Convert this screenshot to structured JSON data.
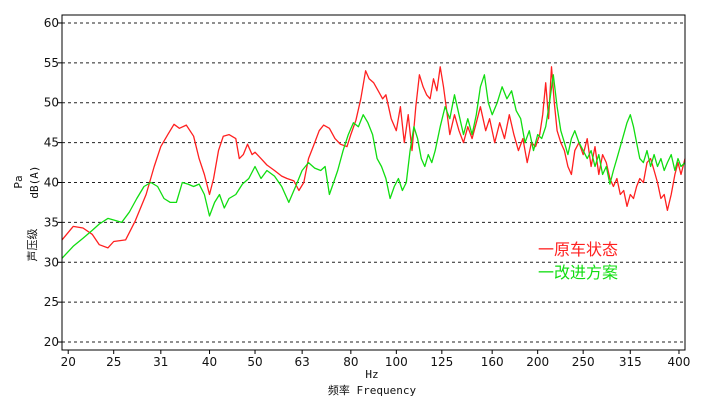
{
  "chart_data": {
    "type": "line",
    "title": "",
    "xlabel_unit": "Hz",
    "xlabel": "频率 Frequency",
    "ylabel_units": [
      "Pa",
      "dB(A)"
    ],
    "ylabel": "声压级",
    "x_scale": "log",
    "xlim": [
      19.4,
      412
    ],
    "ylim": [
      19,
      61
    ],
    "y_ticks": [
      20,
      25,
      30,
      35,
      40,
      45,
      50,
      55,
      60
    ],
    "x_ticks": [
      "20",
      "25",
      "31",
      "40",
      "50",
      "63",
      "80",
      "100",
      "125",
      "160",
      "200",
      "250",
      "315",
      "400"
    ],
    "x_tick_values": [
      20,
      25,
      31.5,
      40,
      50,
      63,
      80,
      100,
      125,
      160,
      200,
      250,
      315,
      400
    ],
    "grid": "horizontal dashed",
    "legend_position": "right",
    "series": [
      {
        "name": "一原车状态",
        "color": "#ff2020",
        "points": [
          [
            19.4,
            32.8
          ],
          [
            20.5,
            34.5
          ],
          [
            21.5,
            34.3
          ],
          [
            22.5,
            33.5
          ],
          [
            23.3,
            32.2
          ],
          [
            24.3,
            31.8
          ],
          [
            25.0,
            32.6
          ],
          [
            26.5,
            32.8
          ],
          [
            27.8,
            35.2
          ],
          [
            29.3,
            38.5
          ],
          [
            30.5,
            42.0
          ],
          [
            31.5,
            44.5
          ],
          [
            32.6,
            46.0
          ],
          [
            33.6,
            47.3
          ],
          [
            34.5,
            46.8
          ],
          [
            35.7,
            47.2
          ],
          [
            37.0,
            45.8
          ],
          [
            38.0,
            43.0
          ],
          [
            39.0,
            41.0
          ],
          [
            40.0,
            38.5
          ],
          [
            40.8,
            40.5
          ],
          [
            41.8,
            44.0
          ],
          [
            42.8,
            45.8
          ],
          [
            44.0,
            46.0
          ],
          [
            45.5,
            45.5
          ],
          [
            46.3,
            43.0
          ],
          [
            47.2,
            43.5
          ],
          [
            48.2,
            44.8
          ],
          [
            49.3,
            43.5
          ],
          [
            50.0,
            43.8
          ],
          [
            51.5,
            43.0
          ],
          [
            53.0,
            42.2
          ],
          [
            55.0,
            41.5
          ],
          [
            57.0,
            40.8
          ],
          [
            58.5,
            40.5
          ],
          [
            60.5,
            40.2
          ],
          [
            62.0,
            39.0
          ],
          [
            63.5,
            40.0
          ],
          [
            65.0,
            43.0
          ],
          [
            66.5,
            44.5
          ],
          [
            68.5,
            46.5
          ],
          [
            70.0,
            47.2
          ],
          [
            72.0,
            46.8
          ],
          [
            74.0,
            45.5
          ],
          [
            76.0,
            44.8
          ],
          [
            78.5,
            44.5
          ],
          [
            80.0,
            46.0
          ],
          [
            82.0,
            47.8
          ],
          [
            84.0,
            50.5
          ],
          [
            86.0,
            54.0
          ],
          [
            87.5,
            53.0
          ],
          [
            89.5,
            52.5
          ],
          [
            91.5,
            51.5
          ],
          [
            93.5,
            50.5
          ],
          [
            95.0,
            51.0
          ],
          [
            97.5,
            48.0
          ],
          [
            100.0,
            46.5
          ],
          [
            102.0,
            49.5
          ],
          [
            104.0,
            45.0
          ],
          [
            106.0,
            48.5
          ],
          [
            108.0,
            44.0
          ],
          [
            110.0,
            49.5
          ],
          [
            112.0,
            53.5
          ],
          [
            114.0,
            52.0
          ],
          [
            116.0,
            51.0
          ],
          [
            118.0,
            50.5
          ],
          [
            120.0,
            53.0
          ],
          [
            122.0,
            51.5
          ],
          [
            124.0,
            54.5
          ],
          [
            126.0,
            52.0
          ],
          [
            128.0,
            49.0
          ],
          [
            130.0,
            46.0
          ],
          [
            133.0,
            48.5
          ],
          [
            136.0,
            46.5
          ],
          [
            139.0,
            45.0
          ],
          [
            142.0,
            47.0
          ],
          [
            145.0,
            45.5
          ],
          [
            148.0,
            47.5
          ],
          [
            151.0,
            49.5
          ],
          [
            155.0,
            46.5
          ],
          [
            158.0,
            48.0
          ],
          [
            162.0,
            45.0
          ],
          [
            166.0,
            47.5
          ],
          [
            170.0,
            45.5
          ],
          [
            174.0,
            48.5
          ],
          [
            178.0,
            46.0
          ],
          [
            182.0,
            44.0
          ],
          [
            186.0,
            45.5
          ],
          [
            190.0,
            42.5
          ],
          [
            194.0,
            45.0
          ],
          [
            198.0,
            44.5
          ],
          [
            202.0,
            46.0
          ],
          [
            205.0,
            48.5
          ],
          [
            208.0,
            52.5
          ],
          [
            211.0,
            48.0
          ],
          [
            214.0,
            54.5
          ],
          [
            217.0,
            50.0
          ],
          [
            220.0,
            46.5
          ],
          [
            224.0,
            45.0
          ],
          [
            228.0,
            44.0
          ],
          [
            232.0,
            42.0
          ],
          [
            236.0,
            41.0
          ],
          [
            240.0,
            44.0
          ],
          [
            245.0,
            45.0
          ],
          [
            250.0,
            43.5
          ],
          [
            255.0,
            45.5
          ],
          [
            260.0,
            42.0
          ],
          [
            265.0,
            44.5
          ],
          [
            270.0,
            41.0
          ],
          [
            275.0,
            43.5
          ],
          [
            280.0,
            42.5
          ],
          [
            285.0,
            40.5
          ],
          [
            290.0,
            39.5
          ],
          [
            295.0,
            40.5
          ],
          [
            300.0,
            38.5
          ],
          [
            305.0,
            39.0
          ],
          [
            310.0,
            37.0
          ],
          [
            315.0,
            38.5
          ],
          [
            320.0,
            38.0
          ],
          [
            325.0,
            39.5
          ],
          [
            330.0,
            40.5
          ],
          [
            336.0,
            40.0
          ],
          [
            342.0,
            42.5
          ],
          [
            348.0,
            43.0
          ],
          [
            354.0,
            41.5
          ],
          [
            360.0,
            40.0
          ],
          [
            366.0,
            38.0
          ],
          [
            372.0,
            38.5
          ],
          [
            378.0,
            36.5
          ],
          [
            385.0,
            38.5
          ],
          [
            392.0,
            41.0
          ],
          [
            398.0,
            42.5
          ],
          [
            404.0,
            41.0
          ],
          [
            412.0,
            43.0
          ]
        ]
      },
      {
        "name": "一改进方案",
        "color": "#11dd11",
        "points": [
          [
            19.4,
            30.5
          ],
          [
            20.5,
            32.0
          ],
          [
            21.5,
            33.0
          ],
          [
            22.5,
            34.0
          ],
          [
            23.3,
            34.8
          ],
          [
            24.3,
            35.5
          ],
          [
            25.0,
            35.3
          ],
          [
            26.0,
            35.0
          ],
          [
            27.0,
            36.3
          ],
          [
            28.0,
            38.0
          ],
          [
            29.0,
            39.5
          ],
          [
            30.0,
            40.0
          ],
          [
            31.0,
            39.5
          ],
          [
            32.0,
            38.0
          ],
          [
            33.0,
            37.5
          ],
          [
            34.0,
            37.5
          ],
          [
            35.0,
            40.0
          ],
          [
            36.0,
            39.8
          ],
          [
            37.0,
            39.5
          ],
          [
            38.0,
            39.8
          ],
          [
            39.0,
            38.5
          ],
          [
            40.0,
            35.8
          ],
          [
            41.0,
            37.5
          ],
          [
            42.0,
            38.5
          ],
          [
            43.0,
            36.8
          ],
          [
            44.0,
            38.0
          ],
          [
            45.5,
            38.5
          ],
          [
            47.0,
            39.8
          ],
          [
            48.5,
            40.5
          ],
          [
            50.0,
            42.0
          ],
          [
            51.5,
            40.5
          ],
          [
            53.0,
            41.5
          ],
          [
            55.0,
            40.8
          ],
          [
            57.0,
            39.5
          ],
          [
            59.0,
            37.5
          ],
          [
            61.0,
            39.5
          ],
          [
            63.0,
            41.5
          ],
          [
            65.0,
            42.5
          ],
          [
            67.0,
            41.8
          ],
          [
            69.0,
            41.5
          ],
          [
            70.5,
            42.0
          ],
          [
            72.0,
            38.5
          ],
          [
            73.5,
            40.0
          ],
          [
            75.0,
            41.5
          ],
          [
            77.0,
            44.0
          ],
          [
            79.0,
            46.0
          ],
          [
            81.0,
            47.5
          ],
          [
            83.0,
            47.0
          ],
          [
            85.0,
            48.5
          ],
          [
            87.0,
            47.5
          ],
          [
            89.0,
            46.0
          ],
          [
            91.0,
            43.0
          ],
          [
            93.0,
            42.0
          ],
          [
            95.0,
            40.5
          ],
          [
            97.0,
            38.0
          ],
          [
            99.0,
            39.5
          ],
          [
            101.0,
            40.5
          ],
          [
            103.0,
            39.0
          ],
          [
            105.0,
            40.0
          ],
          [
            107.0,
            44.0
          ],
          [
            109.0,
            47.0
          ],
          [
            111.0,
            45.5
          ],
          [
            113.0,
            43.0
          ],
          [
            115.0,
            42.0
          ],
          [
            117.0,
            43.5
          ],
          [
            119.0,
            42.5
          ],
          [
            121.0,
            44.0
          ],
          [
            124.0,
            47.0
          ],
          [
            127.0,
            49.5
          ],
          [
            130.0,
            48.0
          ],
          [
            133.0,
            51.0
          ],
          [
            136.0,
            48.5
          ],
          [
            139.0,
            46.0
          ],
          [
            142.0,
            48.0
          ],
          [
            145.0,
            46.0
          ],
          [
            148.0,
            48.5
          ],
          [
            151.0,
            52.0
          ],
          [
            154.0,
            53.5
          ],
          [
            157.0,
            50.0
          ],
          [
            160.0,
            48.5
          ],
          [
            164.0,
            50.0
          ],
          [
            168.0,
            52.0
          ],
          [
            172.0,
            50.5
          ],
          [
            176.0,
            51.5
          ],
          [
            180.0,
            49.0
          ],
          [
            184.0,
            48.0
          ],
          [
            188.0,
            45.0
          ],
          [
            192.0,
            46.5
          ],
          [
            196.0,
            44.0
          ],
          [
            200.0,
            46.0
          ],
          [
            204.0,
            45.5
          ],
          [
            208.0,
            47.0
          ],
          [
            212.0,
            50.0
          ],
          [
            216.0,
            53.5
          ],
          [
            220.0,
            49.5
          ],
          [
            224.0,
            46.5
          ],
          [
            228.0,
            45.0
          ],
          [
            232.0,
            43.5
          ],
          [
            236.0,
            45.5
          ],
          [
            240.0,
            46.5
          ],
          [
            245.0,
            45.0
          ],
          [
            250.0,
            44.0
          ],
          [
            255.0,
            43.0
          ],
          [
            260.0,
            44.0
          ],
          [
            265.0,
            42.0
          ],
          [
            270.0,
            43.5
          ],
          [
            275.0,
            41.0
          ],
          [
            280.0,
            42.0
          ],
          [
            285.0,
            39.8
          ],
          [
            290.0,
            41.5
          ],
          [
            295.0,
            43.0
          ],
          [
            300.0,
            44.5
          ],
          [
            305.0,
            46.0
          ],
          [
            310.0,
            47.5
          ],
          [
            315.0,
            48.5
          ],
          [
            320.0,
            47.0
          ],
          [
            325.0,
            45.0
          ],
          [
            330.0,
            43.0
          ],
          [
            336.0,
            42.5
          ],
          [
            342.0,
            44.0
          ],
          [
            348.0,
            42.0
          ],
          [
            354.0,
            43.5
          ],
          [
            360.0,
            42.0
          ],
          [
            366.0,
            43.0
          ],
          [
            372.0,
            41.5
          ],
          [
            378.0,
            42.5
          ],
          [
            385.0,
            43.5
          ],
          [
            392.0,
            41.5
          ],
          [
            398.0,
            43.0
          ],
          [
            404.0,
            42.0
          ],
          [
            412.0,
            42.5
          ]
        ]
      }
    ]
  }
}
